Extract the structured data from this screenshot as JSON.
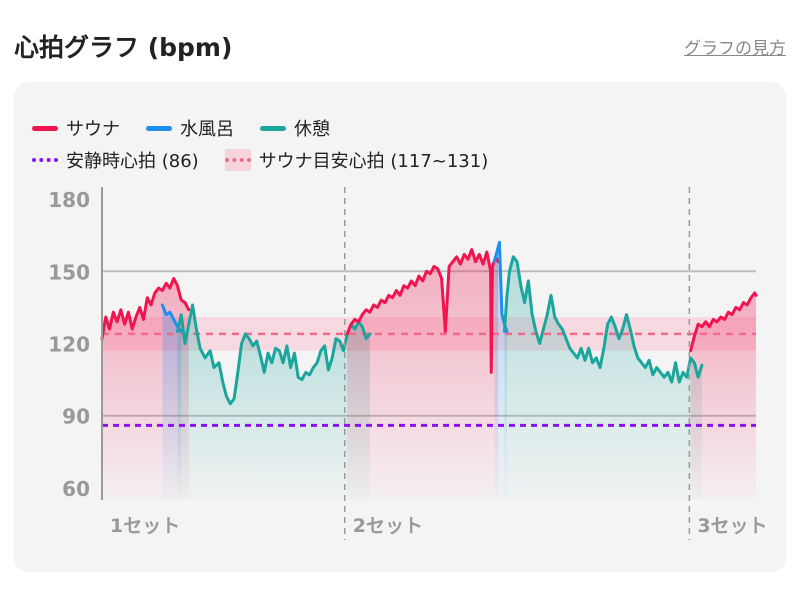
{
  "header": {
    "title": "心拍グラフ (bpm)",
    "help_link": "グラフの見方"
  },
  "legend": {
    "sauna": "サウナ",
    "cold_bath": "水風呂",
    "rest": "休憩",
    "resting_hr": "安静時心拍 (86)",
    "target_hr": "サウナ目安心拍 (117~131)"
  },
  "colors": {
    "sauna": "#f0154f",
    "cold_bath": "#1f8ef1",
    "rest": "#1aa59d",
    "resting_hr": "#8a12f2",
    "target_hr": "#f06a8c",
    "target_band": "#f7d3dc"
  },
  "chart_data": {
    "type": "line",
    "x_unit": "min",
    "xlim": [
      0,
      52
    ],
    "ylim": [
      55,
      185
    ],
    "yticks": [
      180,
      150,
      120,
      90,
      60
    ],
    "set_markers": [
      {
        "label": "1セット",
        "x": 0
      },
      {
        "label": "2セット",
        "x": 19.3
      },
      {
        "label": "3セット",
        "x": 46.7
      }
    ],
    "resting_hr": 86,
    "target_band": [
      117,
      131
    ],
    "target_line": 124,
    "segments": [
      {
        "type": "sauna",
        "points": [
          [
            0,
            122
          ],
          [
            0.3,
            131
          ],
          [
            0.6,
            126
          ],
          [
            0.9,
            133
          ],
          [
            1.2,
            129
          ],
          [
            1.5,
            134
          ],
          [
            1.8,
            128
          ],
          [
            2.1,
            133
          ],
          [
            2.4,
            126
          ],
          [
            2.7,
            131
          ],
          [
            3.0,
            135
          ],
          [
            3.3,
            130
          ],
          [
            3.6,
            139
          ],
          [
            3.9,
            136
          ],
          [
            4.2,
            141
          ],
          [
            4.5,
            143
          ],
          [
            4.8,
            142
          ],
          [
            5.1,
            145
          ],
          [
            5.4,
            143
          ],
          [
            5.7,
            147
          ],
          [
            6.0,
            144
          ],
          [
            6.3,
            138
          ],
          [
            6.6,
            137
          ],
          [
            6.9,
            134
          ]
        ]
      },
      {
        "type": "cold",
        "points": [
          [
            4.8,
            136
          ],
          [
            5.1,
            132
          ],
          [
            5.4,
            133
          ],
          [
            5.7,
            130
          ],
          [
            6.0,
            127
          ],
          [
            6.3,
            125
          ]
        ]
      },
      {
        "type": "rest",
        "points": [
          [
            6.0,
            125
          ],
          [
            6.3,
            132
          ],
          [
            6.6,
            120
          ],
          [
            6.9,
            128
          ],
          [
            7.2,
            136
          ],
          [
            7.5,
            126
          ],
          [
            7.8,
            118
          ],
          [
            8.2,
            114
          ],
          [
            8.6,
            117
          ],
          [
            8.9,
            110
          ],
          [
            9.3,
            112
          ],
          [
            9.6,
            104
          ],
          [
            9.9,
            98
          ],
          [
            10.2,
            95
          ],
          [
            10.5,
            97
          ],
          [
            10.8,
            108
          ],
          [
            11.1,
            120
          ],
          [
            11.4,
            124
          ],
          [
            11.7,
            122
          ],
          [
            12.0,
            119
          ],
          [
            12.3,
            121
          ],
          [
            12.6,
            115
          ],
          [
            12.9,
            108
          ],
          [
            13.2,
            116
          ],
          [
            13.5,
            112
          ],
          [
            13.8,
            118
          ],
          [
            14.1,
            117
          ],
          [
            14.4,
            112
          ],
          [
            14.7,
            119
          ],
          [
            15.0,
            110
          ],
          [
            15.3,
            116
          ],
          [
            15.6,
            106
          ],
          [
            15.9,
            105
          ],
          [
            16.2,
            108
          ],
          [
            16.5,
            107
          ],
          [
            16.8,
            110
          ],
          [
            17.1,
            112
          ],
          [
            17.4,
            117
          ],
          [
            17.7,
            119
          ],
          [
            18.0,
            109
          ],
          [
            18.3,
            114
          ],
          [
            18.6,
            122
          ],
          [
            18.9,
            121
          ],
          [
            19.2,
            117
          ],
          [
            19.5,
            124
          ],
          [
            19.8,
            128
          ],
          [
            20.1,
            126
          ],
          [
            20.4,
            129
          ],
          [
            20.7,
            127
          ],
          [
            21.0,
            122
          ],
          [
            21.3,
            124
          ]
        ]
      },
      {
        "type": "sauna",
        "points": [
          [
            19.5,
            124
          ],
          [
            19.8,
            128
          ],
          [
            20.1,
            130
          ],
          [
            20.4,
            129
          ],
          [
            20.7,
            132
          ],
          [
            21.0,
            134
          ],
          [
            21.3,
            133
          ],
          [
            21.6,
            136
          ],
          [
            21.9,
            135
          ],
          [
            22.2,
            138
          ],
          [
            22.5,
            137
          ],
          [
            22.8,
            140
          ],
          [
            23.1,
            139
          ],
          [
            23.4,
            142
          ],
          [
            23.7,
            140
          ],
          [
            24.0,
            144
          ],
          [
            24.3,
            143
          ],
          [
            24.6,
            146
          ],
          [
            24.9,
            144
          ],
          [
            25.2,
            148
          ],
          [
            25.5,
            146
          ],
          [
            25.8,
            150
          ],
          [
            26.1,
            149
          ],
          [
            26.4,
            152
          ],
          [
            26.7,
            151
          ],
          [
            27.0,
            147
          ],
          [
            27.3,
            125
          ],
          [
            27.6,
            152
          ],
          [
            27.9,
            154
          ],
          [
            28.2,
            156
          ],
          [
            28.5,
            153
          ],
          [
            28.8,
            157
          ],
          [
            29.1,
            155
          ],
          [
            29.4,
            159
          ],
          [
            29.7,
            154
          ],
          [
            30.0,
            157
          ],
          [
            30.3,
            153
          ],
          [
            30.6,
            158
          ],
          [
            30.9,
            150
          ],
          [
            30.95,
            108
          ],
          [
            31.05,
            152
          ],
          [
            31.3,
            156
          ],
          [
            31.5,
            154
          ]
        ]
      },
      {
        "type": "cold",
        "points": [
          [
            31.2,
            154
          ],
          [
            31.4,
            158
          ],
          [
            31.6,
            162
          ],
          [
            31.8,
            132
          ],
          [
            32.0,
            128
          ],
          [
            32.2,
            125
          ]
        ]
      },
      {
        "type": "rest",
        "points": [
          [
            32.0,
            125
          ],
          [
            32.2,
            140
          ],
          [
            32.4,
            150
          ],
          [
            32.7,
            156
          ],
          [
            33.0,
            154
          ],
          [
            33.3,
            144
          ],
          [
            33.6,
            137
          ],
          [
            33.9,
            146
          ],
          [
            34.2,
            132
          ],
          [
            34.5,
            125
          ],
          [
            34.8,
            120
          ],
          [
            35.1,
            126
          ],
          [
            35.4,
            132
          ],
          [
            35.7,
            140
          ],
          [
            36.0,
            131
          ],
          [
            36.3,
            128
          ],
          [
            36.6,
            126
          ],
          [
            36.9,
            122
          ],
          [
            37.2,
            118
          ],
          [
            37.5,
            116
          ],
          [
            37.8,
            114
          ],
          [
            38.1,
            118
          ],
          [
            38.4,
            113
          ],
          [
            38.7,
            118
          ],
          [
            39.0,
            112
          ],
          [
            39.3,
            114
          ],
          [
            39.6,
            110
          ],
          [
            39.9,
            118
          ],
          [
            40.2,
            128
          ],
          [
            40.5,
            131
          ],
          [
            40.8,
            127
          ],
          [
            41.1,
            122
          ],
          [
            41.4,
            126
          ],
          [
            41.7,
            132
          ],
          [
            42.0,
            126
          ],
          [
            42.3,
            119
          ],
          [
            42.6,
            114
          ],
          [
            42.9,
            112
          ],
          [
            43.2,
            110
          ],
          [
            43.5,
            113
          ],
          [
            43.8,
            107
          ],
          [
            44.1,
            110
          ],
          [
            44.4,
            108
          ],
          [
            44.7,
            106
          ],
          [
            45.0,
            108
          ],
          [
            45.3,
            104
          ],
          [
            45.6,
            112
          ],
          [
            45.9,
            104
          ],
          [
            46.2,
            108
          ],
          [
            46.5,
            106
          ],
          [
            46.8,
            114
          ],
          [
            47.1,
            112
          ],
          [
            47.4,
            106
          ],
          [
            47.7,
            111
          ]
        ]
      },
      {
        "type": "sauna",
        "points": [
          [
            46.8,
            117
          ],
          [
            47.1,
            123
          ],
          [
            47.4,
            128
          ],
          [
            47.7,
            127
          ],
          [
            48.0,
            129
          ],
          [
            48.3,
            127
          ],
          [
            48.6,
            130
          ],
          [
            48.9,
            129
          ],
          [
            49.2,
            131
          ],
          [
            49.5,
            130
          ],
          [
            49.8,
            133
          ],
          [
            50.1,
            132
          ],
          [
            50.4,
            135
          ],
          [
            50.7,
            134
          ],
          [
            51.0,
            137
          ],
          [
            51.3,
            136
          ],
          [
            51.6,
            139
          ],
          [
            51.9,
            141
          ],
          [
            52.0,
            140
          ]
        ]
      }
    ]
  }
}
